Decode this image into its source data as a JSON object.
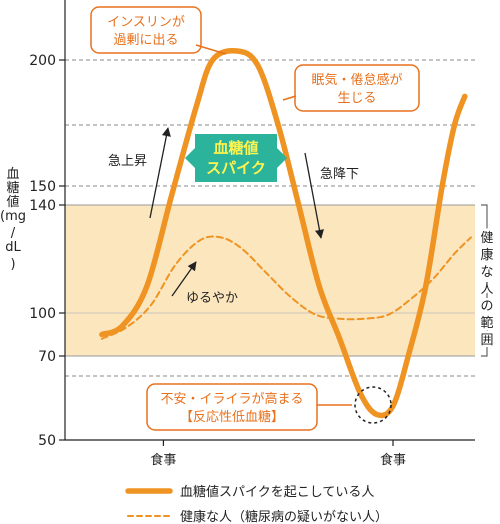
{
  "chart_data": {
    "type": "line",
    "ylabel_lines": [
      "血",
      "糖",
      "値",
      "(mg",
      "/",
      "dL",
      ")"
    ],
    "y_ticks": [
      50,
      70,
      100,
      140,
      150,
      200
    ],
    "ylim": [
      50,
      210
    ],
    "xlim": [
      0,
      10
    ],
    "x_tick_labels": [
      {
        "x": 2.4,
        "label": "食事"
      },
      {
        "x": 8.0,
        "label": "食事"
      }
    ],
    "healthy_range": {
      "from": 70,
      "to": 140,
      "label_lines": [
        "健",
        "康",
        "な",
        "人",
        "の",
        "範",
        "囲"
      ]
    },
    "dashed_gridlines": [
      200,
      175,
      150,
      65
    ],
    "series": [
      {
        "name": "血糖値スパイクを起こしている人",
        "color": "#ef9322",
        "style": "solid",
        "points": [
          [
            0.9,
            85
          ],
          [
            1.4,
            91
          ],
          [
            2.0,
            110
          ],
          [
            2.6,
            145
          ],
          [
            3.2,
            182
          ],
          [
            3.6,
            200
          ],
          [
            4.2,
            205
          ],
          [
            4.7,
            198
          ],
          [
            5.2,
            175
          ],
          [
            5.7,
            140
          ],
          [
            6.2,
            110
          ],
          [
            6.7,
            82
          ],
          [
            7.2,
            61
          ],
          [
            7.6,
            56
          ],
          [
            8.0,
            58
          ],
          [
            8.4,
            73
          ],
          [
            8.8,
            110
          ],
          [
            9.2,
            150
          ],
          [
            9.5,
            175
          ],
          [
            9.75,
            186
          ]
        ]
      },
      {
        "name": "健康な人（糖尿病の疑いがない人）",
        "color": "#ef9322",
        "style": "dashed",
        "points": [
          [
            0.9,
            82
          ],
          [
            1.5,
            90
          ],
          [
            2.1,
            103
          ],
          [
            2.7,
            118
          ],
          [
            3.3,
            127
          ],
          [
            3.8,
            128
          ],
          [
            4.3,
            124
          ],
          [
            4.9,
            115
          ],
          [
            5.5,
            106
          ],
          [
            6.1,
            99
          ],
          [
            6.7,
            96
          ],
          [
            7.3,
            96
          ],
          [
            7.9,
            99
          ],
          [
            8.5,
            106
          ],
          [
            9.0,
            113
          ],
          [
            9.5,
            122
          ],
          [
            9.9,
            128
          ]
        ]
      }
    ],
    "legend_placement": "bottom",
    "annotations": {
      "insulin": [
        "インスリンが",
        "過剰に出る"
      ],
      "drowsy": [
        "眠気・倦怠感が",
        "生じる"
      ],
      "spike": [
        "血糖値",
        "スパイク"
      ],
      "rapid_rise": "急上昇",
      "rapid_fall": "急降下",
      "gentle": "ゆるやか",
      "anxiety": [
        "不安・イライラが高まる",
        "【反応性低血糖】"
      ]
    }
  }
}
